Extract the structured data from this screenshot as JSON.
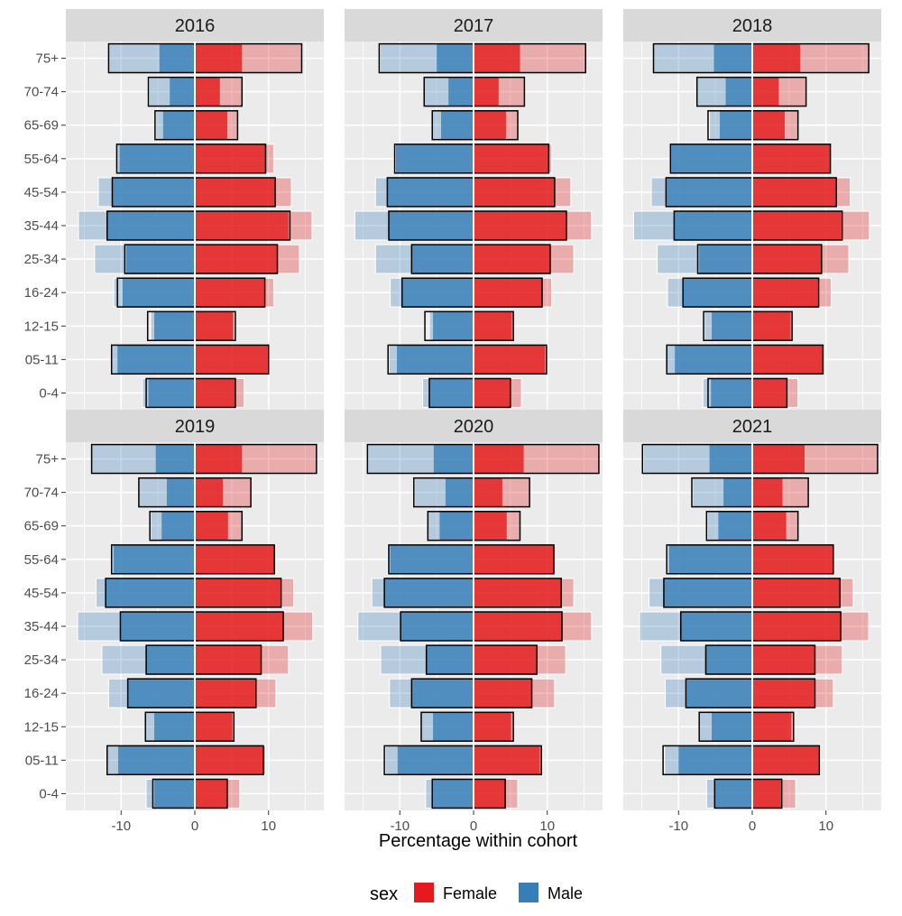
{
  "chart_data": {
    "type": "bar",
    "subtype": "population-pyramid-faceted",
    "xlabel": "Percentage within cohort",
    "x_ticks": [
      -10,
      0,
      10
    ],
    "xlim": [
      -17.5,
      17.5
    ],
    "categories": [
      "0-4",
      "05-11",
      "12-15",
      "16-24",
      "25-34",
      "35-44",
      "45-54",
      "55-64",
      "65-69",
      "70-74",
      "75+"
    ],
    "legend": {
      "title": "sex",
      "placement": "bottom",
      "entries": [
        {
          "label": "Female",
          "color": "#e41a1c"
        },
        {
          "label": "Male",
          "color": "#377eb8"
        }
      ]
    },
    "encoding_notes": "Solid bars = inner values, translucent bars = outer values, black outlines = reference values; male plotted as negative percentages",
    "panels": [
      {
        "title": "2016",
        "male_inner": [
          6.3,
          10.5,
          5.5,
          9.8,
          9.3,
          11.9,
          11.2,
          10.2,
          4.3,
          3.4,
          4.8
        ],
        "male_outer": [
          7.1,
          11.4,
          6.0,
          11.0,
          13.6,
          15.8,
          13.1,
          10.7,
          5.3,
          6.2,
          11.8
        ],
        "male_ref": [
          6.6,
          11.3,
          6.4,
          10.5,
          9.5,
          11.9,
          11.2,
          10.6,
          5.4,
          6.3,
          11.7
        ],
        "female_inner": [
          5.4,
          9.9,
          5.2,
          9.5,
          11.2,
          12.7,
          10.8,
          9.7,
          4.4,
          3.4,
          6.4
        ],
        "female_outer": [
          6.7,
          10.0,
          5.4,
          10.7,
          14.2,
          15.9,
          13.1,
          10.7,
          5.8,
          6.6,
          14.5
        ],
        "female_ref": [
          5.5,
          10.0,
          5.5,
          9.5,
          11.2,
          12.9,
          10.9,
          9.6,
          5.8,
          6.4,
          14.5
        ]
      },
      {
        "title": "2017",
        "male_inner": [
          6.0,
          10.4,
          5.5,
          9.8,
          8.4,
          11.5,
          11.7,
          10.6,
          4.4,
          3.4,
          5.0
        ],
        "male_outer": [
          6.9,
          11.5,
          6.0,
          11.3,
          13.3,
          16.1,
          13.3,
          10.6,
          5.6,
          6.7,
          12.7
        ],
        "male_ref": [
          6.0,
          11.6,
          6.6,
          9.7,
          8.4,
          11.5,
          11.7,
          10.7,
          5.6,
          6.7,
          12.8
        ],
        "female_inner": [
          4.9,
          9.7,
          5.2,
          9.3,
          10.4,
          12.6,
          11.0,
          10.2,
          4.4,
          3.4,
          6.3
        ],
        "female_outer": [
          6.5,
          9.9,
          5.4,
          10.6,
          13.6,
          16.0,
          13.2,
          10.6,
          6.0,
          6.9,
          15.2
        ],
        "female_ref": [
          5.0,
          9.9,
          5.4,
          9.3,
          10.4,
          12.6,
          11.0,
          10.2,
          6.0,
          6.9,
          15.2
        ]
      },
      {
        "title": "2018",
        "male_inner": [
          5.6,
          10.5,
          5.5,
          9.3,
          7.2,
          10.6,
          11.6,
          11.0,
          4.4,
          3.6,
          5.2
        ],
        "male_outer": [
          6.7,
          11.6,
          6.5,
          11.5,
          12.9,
          16.1,
          13.7,
          11.2,
          5.8,
          7.5,
          13.4
        ],
        "male_ref": [
          6.0,
          11.6,
          6.6,
          9.4,
          7.4,
          10.6,
          11.7,
          11.1,
          6.0,
          7.5,
          13.4
        ],
        "female_inner": [
          4.6,
          9.6,
          5.2,
          8.9,
          9.4,
          12.1,
          11.3,
          10.6,
          4.4,
          3.6,
          6.5
        ],
        "female_outer": [
          6.2,
          9.7,
          5.4,
          10.7,
          13.1,
          15.9,
          13.3,
          10.7,
          6.2,
          7.3,
          15.8
        ],
        "female_ref": [
          4.7,
          9.6,
          5.4,
          9.0,
          9.4,
          12.2,
          11.4,
          10.6,
          6.2,
          7.3,
          15.8
        ]
      },
      {
        "title": "2019",
        "male_inner": [
          5.5,
          10.4,
          5.5,
          9.1,
          6.6,
          10.1,
          12.1,
          11.0,
          4.5,
          3.8,
          5.3
        ],
        "male_outer": [
          6.6,
          11.9,
          6.7,
          11.7,
          12.6,
          15.9,
          13.4,
          11.4,
          6.0,
          7.6,
          14.0
        ],
        "male_ref": [
          5.7,
          11.9,
          6.7,
          9.1,
          6.6,
          10.1,
          12.1,
          11.3,
          6.1,
          7.6,
          14.0
        ],
        "female_inner": [
          4.4,
          9.2,
          5.1,
          8.3,
          9.0,
          12.0,
          11.6,
          10.8,
          4.5,
          3.8,
          6.4
        ],
        "female_outer": [
          6.1,
          9.6,
          5.3,
          11.0,
          12.7,
          16.0,
          13.4,
          11.0,
          6.4,
          7.6,
          16.5
        ],
        "female_ref": [
          4.4,
          9.3,
          5.3,
          8.3,
          9.0,
          12.0,
          11.7,
          10.8,
          6.4,
          7.6,
          16.5
        ]
      },
      {
        "title": "2020",
        "male_inner": [
          5.5,
          10.3,
          5.5,
          8.4,
          6.4,
          9.9,
          12.1,
          11.3,
          4.6,
          3.8,
          5.4
        ],
        "male_outer": [
          6.5,
          12.0,
          7.1,
          11.4,
          12.6,
          15.7,
          13.8,
          11.7,
          6.2,
          8.0,
          14.5
        ],
        "male_ref": [
          5.6,
          12.1,
          7.1,
          8.4,
          6.4,
          9.9,
          12.1,
          11.5,
          6.2,
          8.1,
          14.4
        ],
        "female_inner": [
          4.3,
          9.0,
          5.1,
          7.9,
          8.6,
          12.0,
          11.9,
          10.9,
          4.5,
          3.9,
          6.8
        ],
        "female_outer": [
          6.0,
          9.4,
          5.4,
          11.0,
          12.5,
          16.0,
          13.6,
          10.9,
          6.3,
          7.6,
          17.0
        ],
        "female_ref": [
          4.3,
          9.2,
          5.4,
          7.9,
          8.6,
          12.0,
          11.9,
          10.9,
          6.3,
          7.6,
          17.0
        ]
      },
      {
        "title": "2021",
        "male_inner": [
          5.1,
          10.0,
          5.5,
          8.9,
          6.4,
          9.7,
          12.0,
          11.3,
          4.6,
          3.9,
          5.8
        ],
        "male_outer": [
          6.2,
          11.9,
          7.3,
          11.8,
          12.4,
          15.3,
          14.0,
          11.5,
          6.1,
          8.1,
          14.8
        ],
        "male_ref": [
          5.1,
          12.1,
          7.2,
          9.0,
          6.3,
          9.7,
          12.0,
          11.6,
          6.2,
          8.2,
          14.9
        ],
        "female_inner": [
          3.9,
          9.0,
          5.3,
          8.4,
          8.5,
          12.0,
          11.8,
          11.0,
          4.6,
          4.1,
          7.1
        ],
        "female_outer": [
          5.9,
          9.2,
          5.6,
          11.0,
          12.2,
          15.8,
          13.7,
          11.1,
          6.2,
          7.6,
          17.0
        ],
        "female_ref": [
          4.0,
          9.1,
          5.6,
          8.5,
          8.5,
          12.0,
          11.9,
          11.0,
          6.2,
          7.6,
          17.0
        ]
      }
    ]
  }
}
